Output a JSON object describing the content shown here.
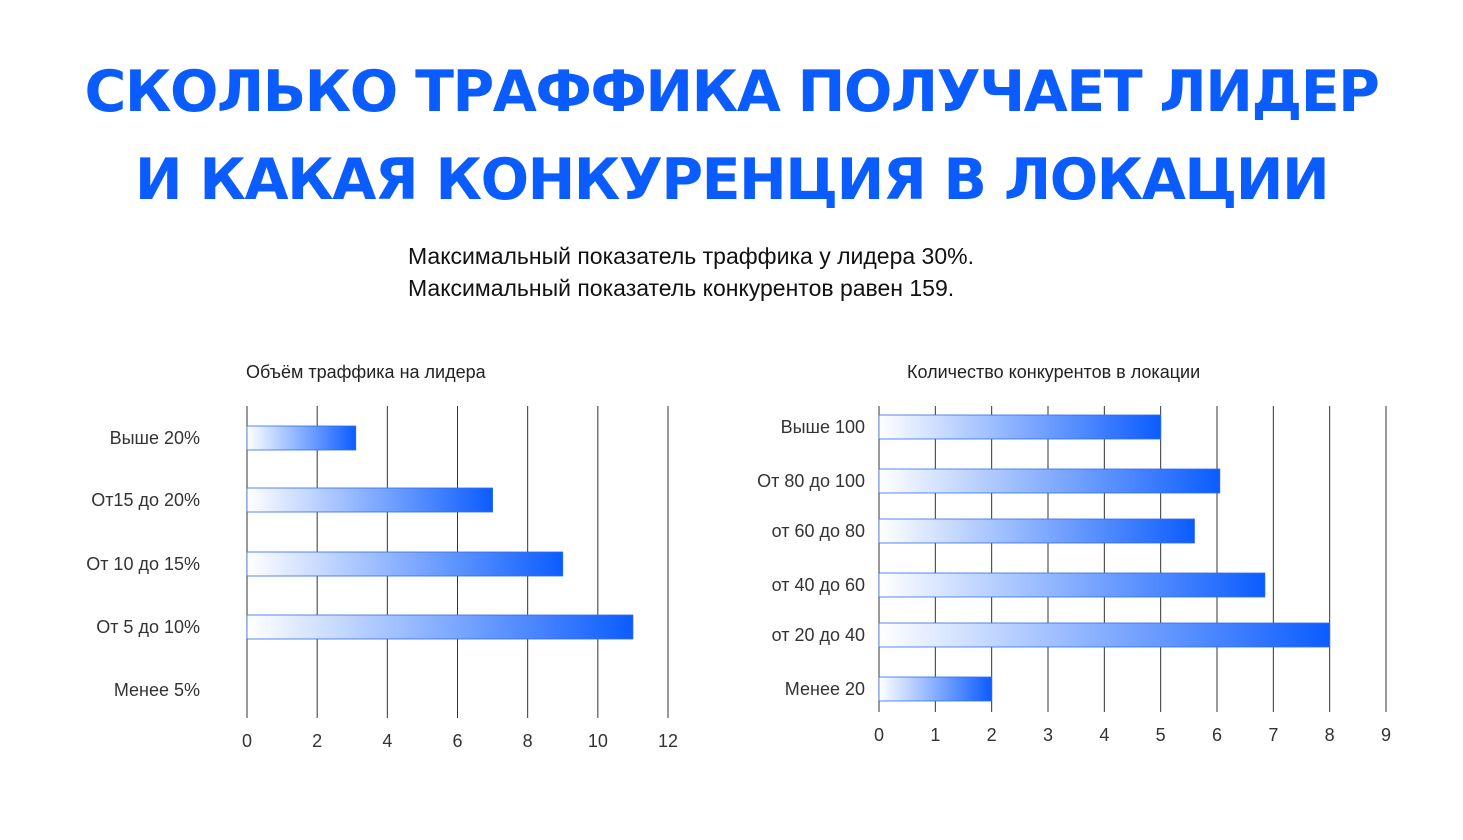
{
  "header": {
    "title_line1": "СКОЛЬКО ТРАФФИКА ПОЛУЧАЕТ ЛИДЕР",
    "title_line2": "И КАКАЯ КОНКУРЕНЦИЯ В ЛОКАЦИИ",
    "subtitle_line1": "Максимальный показатель траффика у лидера 30%.",
    "subtitle_line2": "Максимальный показатель конкурентов равен 159."
  },
  "colors": {
    "accent": "#0b5cff",
    "bar_start": "#ffffff",
    "bar_end": "#0b5cff",
    "grid": "#333333"
  },
  "chart_data": [
    {
      "type": "bar",
      "orientation": "horizontal",
      "title": "Объём траффика на лидера",
      "categories": [
        "Выше 20%",
        "От15 до 20%",
        "От 10 до 15%",
        "От 5 до 10%",
        "Менее 5%"
      ],
      "values": [
        3.1,
        7,
        9,
        11,
        0
      ],
      "xlim": [
        0,
        12
      ],
      "xticks": [
        "0",
        "2",
        "4",
        "6",
        "8",
        "10",
        "12"
      ],
      "grid": true
    },
    {
      "type": "bar",
      "orientation": "horizontal",
      "title": "Количество конкурентов в локации",
      "categories": [
        "Выше 100",
        "От 80 до 100",
        "от 60 до 80",
        "от 40 до 60",
        "от 20 до 40",
        "Менее 20"
      ],
      "values": [
        5,
        6.05,
        5.6,
        6.85,
        8,
        2
      ],
      "xlim": [
        0,
        9
      ],
      "xticks": [
        "0",
        "1",
        "2",
        "3",
        "4",
        "5",
        "6",
        "7",
        "8",
        "9"
      ],
      "grid": true
    }
  ]
}
